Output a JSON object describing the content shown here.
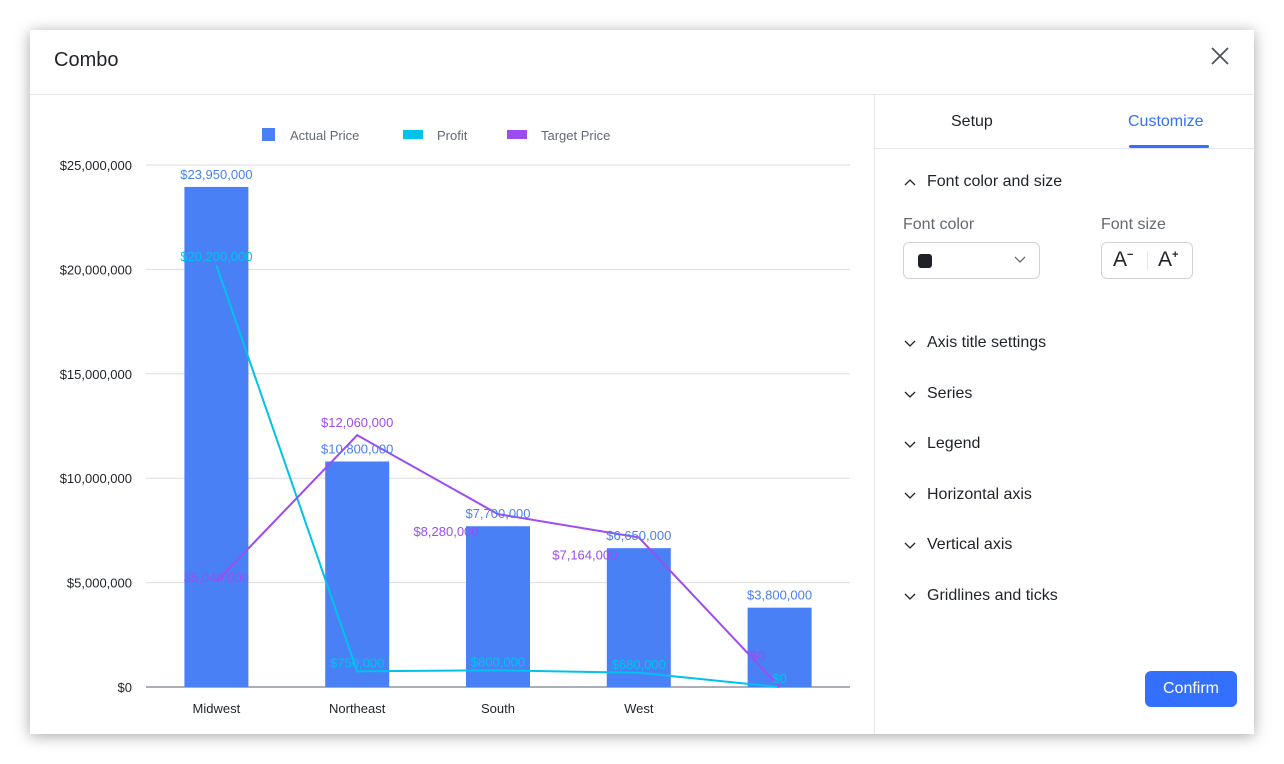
{
  "dialog": {
    "title": "Combo"
  },
  "tabs": [
    {
      "label": "Setup"
    },
    {
      "label": "Customize"
    }
  ],
  "customize": {
    "font_section": "Font color and size",
    "font_color_label": "Font color",
    "font_size_label": "Font size",
    "font_color_value": "#1f2329",
    "decrease_label": "A",
    "increase_label": "A",
    "sections": [
      "Axis title settings",
      "Series",
      "Legend",
      "Horizontal axis",
      "Vertical axis",
      "Gridlines and ticks"
    ],
    "confirm_label": "Confirm"
  },
  "chart_data": {
    "type": "bar",
    "categories": [
      "Midwest",
      "Northeast",
      "South",
      "West",
      ""
    ],
    "series": [
      {
        "name": "Actual Price",
        "kind": "bar",
        "color": "#4a80f6",
        "values": [
          23950000,
          10800000,
          7700000,
          6650000,
          3800000
        ],
        "labels": [
          "$23,950,000",
          "$10,800,000",
          "$7,700,000",
          "$6,650,000",
          "$3,800,000"
        ]
      },
      {
        "name": "Profit",
        "kind": "line",
        "color": "#00c2ea",
        "values": [
          20200000,
          750000,
          800000,
          680000,
          0
        ],
        "labels": [
          "$20,200,000",
          "$750,000",
          "$800,000",
          "$680,000",
          "$0"
        ]
      },
      {
        "name": "Target Price",
        "kind": "line",
        "color": "#9d4cf0",
        "values": [
          5040000,
          12060000,
          8280000,
          7164000,
          0
        ],
        "labels": [
          "$5,040,000",
          "$12,060,000",
          "$8,280,000",
          "$7,164,000",
          "$0"
        ]
      }
    ],
    "yticks": [
      "$0",
      "$5,000,000",
      "$10,000,000",
      "$15,000,000",
      "$20,000,000",
      "$25,000,000"
    ],
    "ylim": [
      0,
      25000000
    ],
    "legend": "top",
    "grid": true
  }
}
